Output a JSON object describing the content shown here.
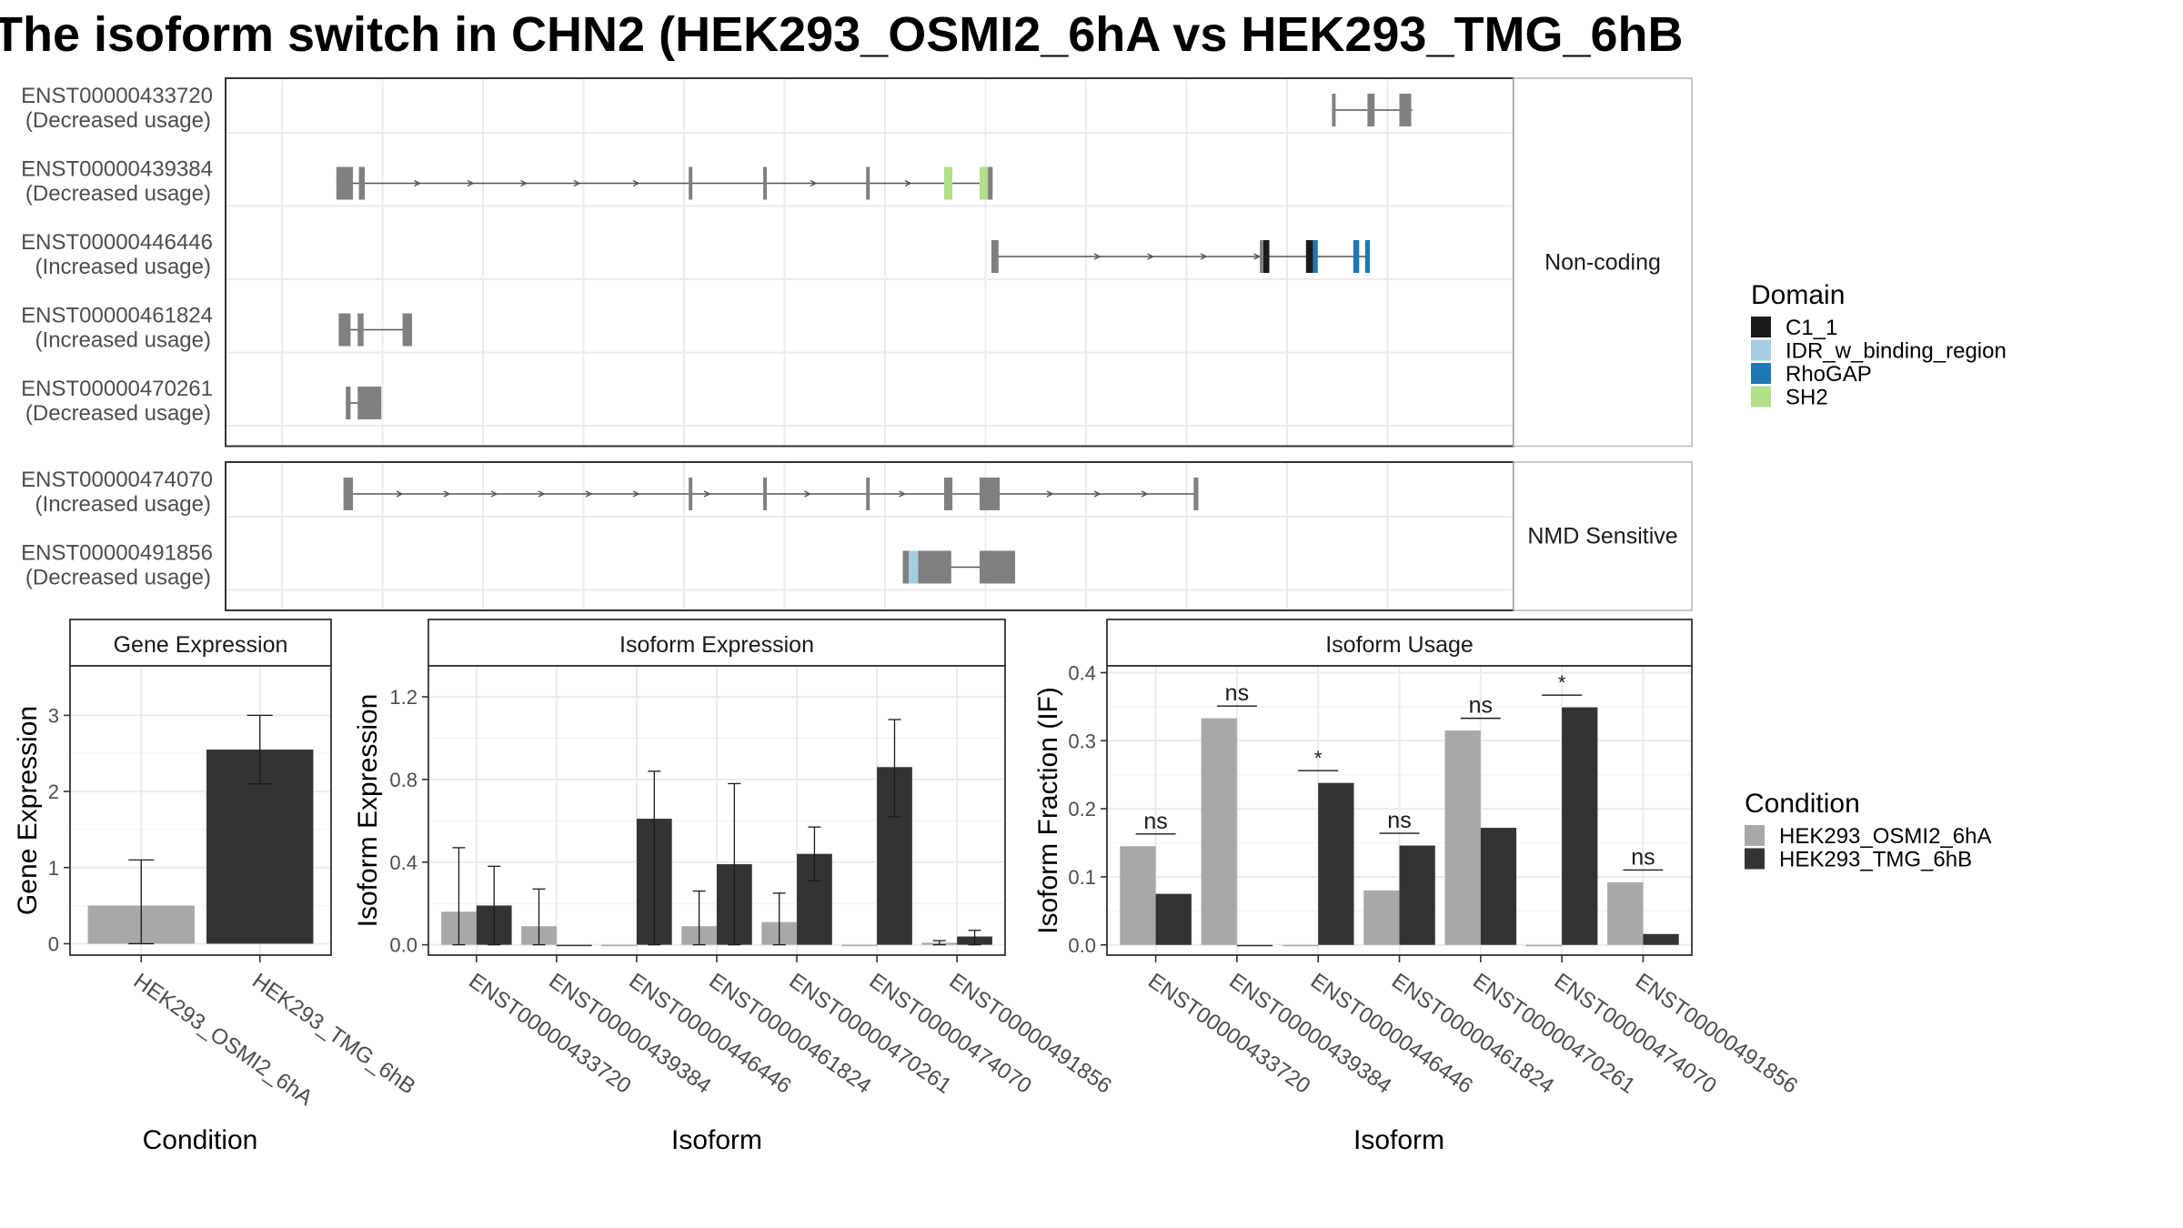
{
  "title": "The isoform switch in CHN2 (HEK293_OSMI2_6hA vs HEK293_TMG_6hB",
  "colors": {
    "tx_grey": "#808080",
    "C1_1": "#1b1b1b",
    "IDR_w_binding_region": "#a6cee3",
    "RhoGAP": "#1f78b4",
    "SH2": "#b2df8a",
    "cond_a": "#a8a8a8",
    "cond_b": "#333333",
    "grid": "#ebebeb",
    "strip": "#ffffff"
  },
  "transcripts": {
    "x_range": [
      0,
      1000
    ],
    "groups": [
      {
        "strip_label": "Non-coding",
        "rows": [
          {
            "id": "ENST00000433720",
            "usage": "(Decreased usage)",
            "line": [
              888,
              956
            ],
            "exons": [
              [
                888,
                889,
                "tx"
              ],
              [
                918,
                924,
                "tx"
              ],
              [
                945,
                955,
                "tx"
              ]
            ],
            "arrows": []
          },
          {
            "id": "ENST00000439384",
            "usage": "(Decreased usage)",
            "line": [
              46,
              601
            ],
            "exons": [
              [
                46,
                60,
                "tx"
              ],
              [
                65,
                70,
                "tx"
              ],
              [
                344,
                346,
                "tx"
              ],
              [
                407,
                409,
                "tx"
              ],
              [
                494,
                496,
                "tx"
              ],
              [
                560,
                567,
                "SH2"
              ],
              [
                590,
                597,
                "SH2"
              ],
              [
                597,
                601,
                "tx"
              ]
            ],
            "arrows": [
              115,
              160,
              205,
              250,
              300,
              450,
              530
            ]
          },
          {
            "id": "ENST00000446446",
            "usage": "(Increased usage)",
            "line": [
              600,
              920
            ],
            "exons": [
              [
                600,
                606,
                "tx"
              ],
              [
                827,
                830,
                "tx"
              ],
              [
                830,
                835,
                "C1_1"
              ],
              [
                866,
                872,
                "C1_1"
              ],
              [
                872,
                876,
                "RhoGAP"
              ],
              [
                906,
                911,
                "RhoGAP"
              ],
              [
                916,
                920,
                "RhoGAP"
              ]
            ],
            "arrows": [
              690,
              735,
              780,
              825
            ]
          },
          {
            "id": "ENST00000461824",
            "usage": "(Increased usage)",
            "line": [
              48,
              110
            ],
            "exons": [
              [
                48,
                58,
                "tx"
              ],
              [
                64,
                69,
                "tx"
              ],
              [
                102,
                104,
                "tx"
              ],
              [
                104,
                110,
                "tx"
              ]
            ],
            "arrows": []
          },
          {
            "id": "ENST00000470261",
            "usage": "(Decreased usage)",
            "line": [
              54,
              84
            ],
            "exons": [
              [
                54,
                58,
                "tx"
              ],
              [
                64,
                75,
                "tx"
              ],
              [
                75,
                84,
                "tx"
              ]
            ],
            "arrows": []
          }
        ]
      },
      {
        "strip_label": "NMD Sensitive",
        "rows": [
          {
            "id": "ENST00000474070",
            "usage": "(Increased usage)",
            "line": [
              52,
              775
            ],
            "exons": [
              [
                52,
                60,
                "tx"
              ],
              [
                344,
                346,
                "tx"
              ],
              [
                407,
                409,
                "tx"
              ],
              [
                494,
                496,
                "tx"
              ],
              [
                560,
                567,
                "tx"
              ],
              [
                590,
                607,
                "tx"
              ],
              [
                771,
                775,
                "tx"
              ]
            ],
            "arrows": [
              100,
              140,
              180,
              220,
              260,
              300,
              360,
              445,
              525,
              650,
              690,
              730
            ]
          },
          {
            "id": "ENST00000491856",
            "usage": "(Decreased usage)",
            "line": [
              525,
              620
            ],
            "exons": [
              [
                525,
                530,
                "tx"
              ],
              [
                530,
                538,
                "IDR_w_binding_region"
              ],
              [
                538,
                566,
                "tx"
              ],
              [
                590,
                620,
                "tx"
              ]
            ],
            "arrows": []
          }
        ]
      }
    ]
  },
  "legends": {
    "domain": {
      "title": "Domain",
      "items": [
        {
          "label": "C1_1",
          "color": "#1b1b1b"
        },
        {
          "label": "IDR_w_binding_region",
          "color": "#a6cee3"
        },
        {
          "label": "RhoGAP",
          "color": "#1f78b4"
        },
        {
          "label": "SH2",
          "color": "#b2df8a"
        }
      ]
    },
    "condition": {
      "title": "Condition",
      "items": [
        {
          "label": "HEK293_OSMI2_6hA",
          "color": "#a8a8a8"
        },
        {
          "label": "HEK293_TMG_6hB",
          "color": "#333333"
        }
      ]
    }
  },
  "chart_data": [
    {
      "type": "bar",
      "strip_title": "Gene Expression",
      "xlabel": "Condition",
      "ylabel": "Gene Expression",
      "ylim": [
        -0.15,
        3.65
      ],
      "yticks": [
        0,
        1,
        2,
        3
      ],
      "categories": [
        "HEK293_OSMI2_6hA",
        "HEK293_TMG_6hB"
      ],
      "values": [
        0.5,
        2.55
      ],
      "errors": [
        [
          0.0,
          1.1
        ],
        [
          2.1,
          3.0
        ]
      ]
    },
    {
      "type": "bar",
      "strip_title": "Isoform Expression",
      "xlabel": "Isoform",
      "ylabel": "Isoform Expression",
      "ylim": [
        -0.05,
        1.35
      ],
      "yticks": [
        0.0,
        0.4,
        0.8,
        1.2
      ],
      "yticklabels": [
        "0.0",
        "0.4",
        "0.8",
        "1.2"
      ],
      "categories": [
        "ENST00000433720",
        "ENST00000439384",
        "ENST00000446446",
        "ENST00000461824",
        "ENST00000470261",
        "ENST00000474070",
        "ENST00000491856"
      ],
      "series": [
        {
          "name": "HEK293_OSMI2_6hA",
          "values": [
            0.16,
            0.09,
            0.0,
            0.09,
            0.11,
            0.0,
            0.01
          ],
          "errors": [
            [
              0.0,
              0.47
            ],
            [
              0.0,
              0.27
            ],
            [
              0.0,
              0.0
            ],
            [
              0.0,
              0.26
            ],
            [
              0.0,
              0.25
            ],
            [
              0.0,
              0.0
            ],
            [
              0.0,
              0.02
            ]
          ]
        },
        {
          "name": "HEK293_TMG_6hB",
          "values": [
            0.19,
            0.0,
            0.61,
            0.39,
            0.44,
            0.86,
            0.04
          ],
          "errors": [
            [
              0.0,
              0.38
            ],
            [
              0.0,
              0.0
            ],
            [
              0.0,
              0.84
            ],
            [
              0.0,
              0.78
            ],
            [
              0.31,
              0.57
            ],
            [
              0.62,
              1.09
            ],
            [
              0.0,
              0.07
            ]
          ]
        }
      ]
    },
    {
      "type": "bar",
      "strip_title": "Isoform Usage",
      "xlabel": "Isoform",
      "ylabel": "Isoform Fraction (IF)",
      "ylim": [
        -0.015,
        0.41
      ],
      "yticks": [
        0.0,
        0.1,
        0.2,
        0.3,
        0.4
      ],
      "yticklabels": [
        "0.0",
        "0.1",
        "0.2",
        "0.3",
        "0.4"
      ],
      "categories": [
        "ENST00000433720",
        "ENST00000439384",
        "ENST00000446446",
        "ENST00000461824",
        "ENST00000470261",
        "ENST00000474070",
        "ENST00000491856"
      ],
      "series": [
        {
          "name": "HEK293_OSMI2_6hA",
          "values": [
            0.145,
            0.333,
            0.0,
            0.08,
            0.315,
            0.0,
            0.092
          ]
        },
        {
          "name": "HEK293_TMG_6hB",
          "values": [
            0.075,
            0.0,
            0.238,
            0.146,
            0.172,
            0.349,
            0.016
          ]
        }
      ],
      "annotations": [
        {
          "label": "ns",
          "y": 0.163
        },
        {
          "label": "ns",
          "y": 0.351
        },
        {
          "label": "*",
          "y": 0.256
        },
        {
          "label": "ns",
          "y": 0.164
        },
        {
          "label": "ns",
          "y": 0.333
        },
        {
          "label": "*",
          "y": 0.367
        },
        {
          "label": "ns",
          "y": 0.11
        }
      ]
    }
  ]
}
